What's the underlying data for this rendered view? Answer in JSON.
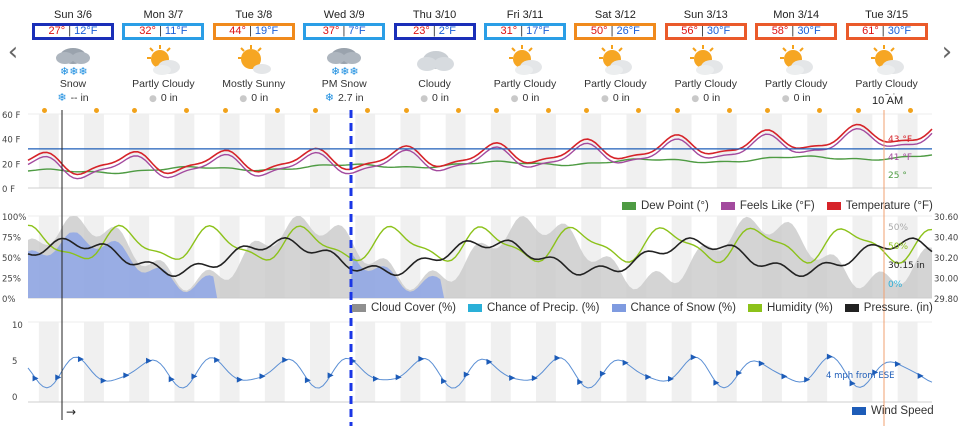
{
  "nav": {
    "prev_icon": "chevron-left-icon",
    "next_icon": "chevron-right-icon",
    "prev_glyph": "‹",
    "next_glyph": "›"
  },
  "days": [
    {
      "name": "Sun 3/6",
      "hi": "27°",
      "lo": "12°F",
      "box": "#1a2fb8",
      "icon": "snow-icon",
      "cond": "Snow",
      "precip": "-- in",
      "precip_icon": "snowflake-icon"
    },
    {
      "name": "Mon 3/7",
      "hi": "32°",
      "lo": "11°F",
      "box": "#2a9ee6",
      "icon": "partly-cloudy-icon",
      "cond": "Partly Cloudy",
      "precip": "0 in",
      "precip_icon": "raindrop-icon"
    },
    {
      "name": "Tue 3/8",
      "hi": "44°",
      "lo": "19°F",
      "box": "#f08a1c",
      "icon": "mostly-sunny-icon",
      "cond": "Mostly Sunny",
      "precip": "0 in",
      "precip_icon": "raindrop-icon"
    },
    {
      "name": "Wed 3/9",
      "hi": "37°",
      "lo": "7°F",
      "box": "#2a9ee6",
      "icon": "pm-snow-icon",
      "cond": "PM Snow",
      "precip": "2.7 in",
      "precip_icon": "snowflake-icon"
    },
    {
      "name": "Thu 3/10",
      "hi": "23°",
      "lo": "2°F",
      "box": "#1a2fb8",
      "icon": "cloudy-icon",
      "cond": "Cloudy",
      "precip": "0 in",
      "precip_icon": "raindrop-icon"
    },
    {
      "name": "Fri 3/11",
      "hi": "31°",
      "lo": "17°F",
      "box": "#2a9ee6",
      "icon": "partly-cloudy-icon",
      "cond": "Partly Cloudy",
      "precip": "0 in",
      "precip_icon": "raindrop-icon"
    },
    {
      "name": "Sat 3/12",
      "hi": "50°",
      "lo": "26°F",
      "box": "#f08a1c",
      "icon": "partly-cloudy-icon",
      "cond": "Partly Cloudy",
      "precip": "0 in",
      "precip_icon": "raindrop-icon"
    },
    {
      "name": "Sun 3/13",
      "hi": "56°",
      "lo": "30°F",
      "box": "#ea5a2a",
      "icon": "partly-cloudy-icon",
      "cond": "Partly Cloudy",
      "precip": "0 in",
      "precip_icon": "raindrop-icon"
    },
    {
      "name": "Mon 3/14",
      "hi": "58°",
      "lo": "30°F",
      "box": "#ea5a2a",
      "icon": "partly-cloudy-icon",
      "cond": "Partly Cloudy",
      "precip": "0 in",
      "precip_icon": "raindrop-icon"
    },
    {
      "name": "Tue 3/15",
      "hi": "61°",
      "lo": "30°F",
      "box": "#ea5a2a",
      "icon": "partly-cloudy-icon",
      "cond": "Partly Cloudy",
      "precip": "0 in",
      "precip_icon": "raindrop-icon"
    }
  ],
  "cursor": {
    "time_label": "10 AM"
  },
  "temp_chart": {
    "y_ticks": [
      "60 F",
      "40 F",
      "20 F",
      "0 F"
    ],
    "legend": [
      {
        "label": "Dew Point (°)",
        "color": "#4e9b43"
      },
      {
        "label": "Feels Like (°F)",
        "color": "#a34a9e"
      },
      {
        "label": "Temperature (°F)",
        "color": "#d62329"
      }
    ],
    "readouts": [
      {
        "text": "43 °F",
        "color": "#d62329"
      },
      {
        "text": "41 °F",
        "color": "#a34a9e"
      },
      {
        "text": "25 °",
        "color": "#4e9b43"
      }
    ]
  },
  "pct_chart": {
    "y_ticks_left": [
      "100%",
      "75%",
      "50%",
      "25%",
      "0%"
    ],
    "y_ticks_right": [
      "30.60",
      "30.40",
      "30.20",
      "30.00",
      "29.80"
    ],
    "legend": [
      {
        "label": "Cloud Cover (%)",
        "color": "#8f8f8f"
      },
      {
        "label": "Chance of Precip. (%)",
        "color": "#2ab0d8"
      },
      {
        "label": "Chance of Snow (%)",
        "color": "#7f9be0"
      },
      {
        "label": "Humidity (%)",
        "color": "#8cc21a"
      },
      {
        "label": "Pressure. (in)",
        "color": "#222222"
      }
    ],
    "readouts": [
      {
        "text": "50%",
        "color": "#aaaaaa"
      },
      {
        "text": "50%",
        "color": "#8cc21a"
      },
      {
        "text": "30.15 in",
        "color": "#222222"
      },
      {
        "text": "0%",
        "color": "#2ab0d8"
      }
    ]
  },
  "wind_chart": {
    "y_ticks": [
      "10",
      "5",
      "0"
    ],
    "legend": [
      {
        "label": "Wind Speed",
        "color": "#1d5cb8"
      }
    ],
    "readout": "4 mph from ESE",
    "arrow": "→"
  }
}
